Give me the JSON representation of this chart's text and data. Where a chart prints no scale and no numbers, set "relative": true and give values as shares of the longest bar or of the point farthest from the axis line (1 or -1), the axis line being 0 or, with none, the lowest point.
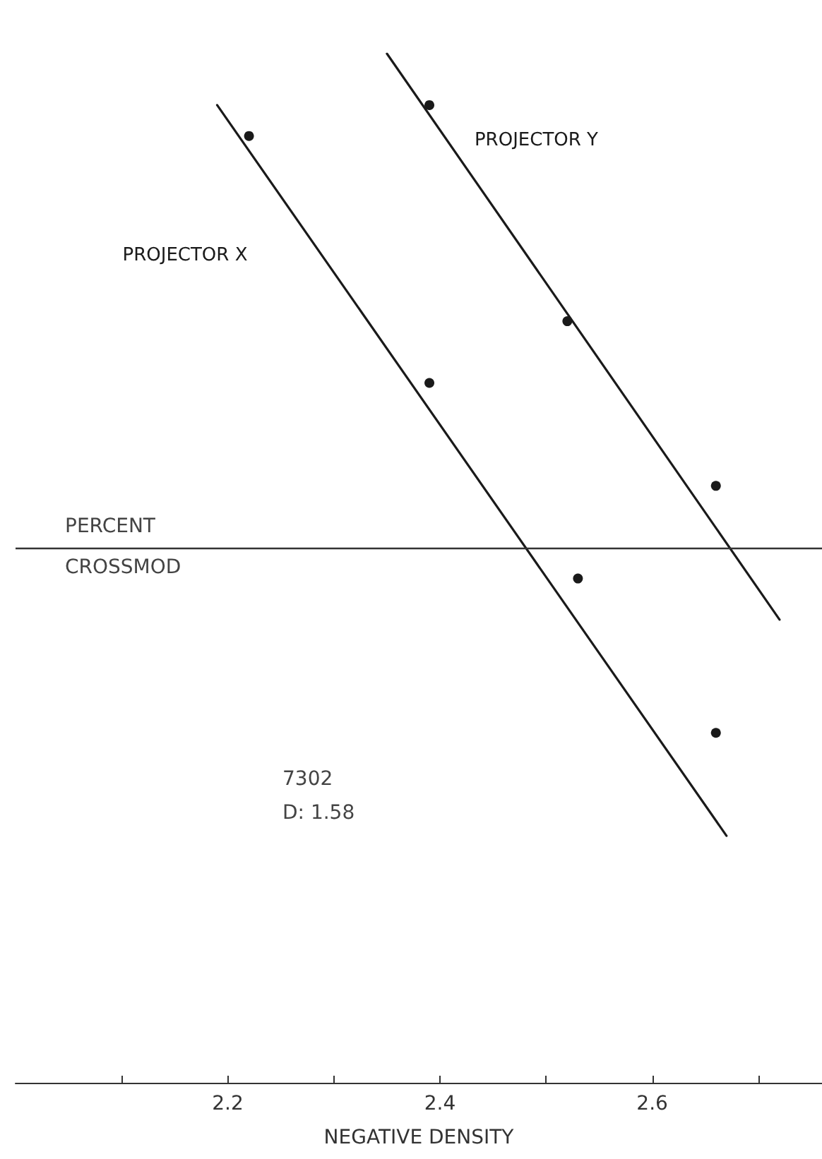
{
  "chart_data": {
    "type": "scatter",
    "relative": true,
    "xlabel": "NEGATIVE DENSITY",
    "xlim": [
      2.0,
      2.76
    ],
    "xticks": [
      {
        "value": 2.1,
        "label": null
      },
      2.2,
      {
        "value": 2.3,
        "label": null
      },
      2.4,
      {
        "value": 2.5,
        "label": null
      },
      2.6,
      {
        "value": 2.7,
        "label": null
      }
    ],
    "series": [
      {
        "name": "PROJECTOR X",
        "type": "line",
        "marker": "none",
        "x": [
          2.19,
          2.67
        ],
        "values": [
          0.95,
          0.24
        ],
        "color": "#1a1a1a"
      },
      {
        "name": "PROJECTOR Y",
        "type": "line",
        "marker": "none",
        "x": [
          2.35,
          2.72
        ],
        "values": [
          1,
          0.45
        ],
        "color": "#1a1a1a"
      },
      {
        "x": [
          2.22,
          2.39,
          2.53,
          2.66
        ],
        "values": [
          0.92,
          0.68,
          0.49,
          0.34
        ],
        "color": "#1a1a1a"
      },
      {
        "x": [
          2.39,
          2.52,
          2.66
        ],
        "values": [
          0.95,
          0.74,
          0.58
        ],
        "color": "#1a1a1a"
      }
    ],
    "ref_lines": [
      {
        "axis": "y",
        "value": 0.52,
        "label": "PERCENT CROSSMOD",
        "color": "#333333"
      }
    ],
    "annotations": [
      "7302",
      "D: 1.58"
    ],
    "marker": "circle",
    "line_style": "solid",
    "grid": false,
    "legend": false
  }
}
